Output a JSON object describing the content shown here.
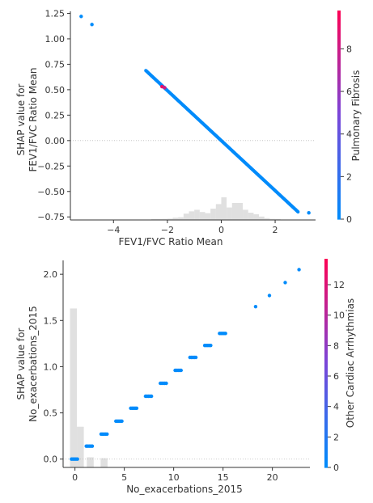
{
  "colors": {
    "low": "#008bfb",
    "mid": "#7b45d8",
    "high": "#ff0052",
    "hist": "#cccccc",
    "axis": "#333333",
    "zero_line": "#bbbbbb"
  },
  "chart_data": [
    {
      "type": "scatter",
      "title": "",
      "xlabel": "FEV1/FVC Ratio Mean",
      "ylabel_lines": [
        "SHAP value for",
        "FEV1/FVC Ratio Mean"
      ],
      "xlim": [
        -5.6,
        3.5
      ],
      "ylim": [
        -0.78,
        1.27
      ],
      "x_ticks": [
        -4,
        -2,
        0,
        2
      ],
      "y_ticks": [
        -0.75,
        -0.5,
        -0.25,
        0.0,
        0.25,
        0.5,
        0.75,
        1.0,
        1.25
      ],
      "y_tick_labels": [
        "−0.75",
        "−0.50",
        "−0.25",
        "0.00",
        "0.25",
        "0.50",
        "0.75",
        "1.00",
        "1.25"
      ],
      "x_tick_labels": [
        "−4",
        "−2",
        "0",
        "2"
      ],
      "colorbar": {
        "label": "Pulmonary Fibrosis",
        "range": [
          0,
          9.8
        ],
        "ticks": [
          0,
          2,
          4,
          6,
          8
        ]
      },
      "line_segment": {
        "x_start": -2.8,
        "x_end": 2.85,
        "slope": -0.2458,
        "intercept": 0.0
      },
      "points": [
        {
          "x": -5.2,
          "y": 1.22,
          "c": 0
        },
        {
          "x": -4.8,
          "y": 1.14,
          "c": 0
        },
        {
          "x": -2.2,
          "y": 0.53,
          "c": 9
        },
        {
          "x": -2.1,
          "y": 0.52,
          "c": 8
        },
        {
          "x": 3.25,
          "y": -0.71,
          "c": 0
        }
      ],
      "histogram": [
        0.04,
        0.04,
        0.05,
        0.06,
        0.1,
        0.12,
        0.28,
        0.38,
        0.45,
        0.35,
        0.3,
        0.5,
        0.7,
        1.0,
        0.55,
        0.75,
        0.75,
        0.45,
        0.32,
        0.25,
        0.15,
        0.08,
        0.05,
        0.04
      ],
      "histogram_xrange": [
        -2.6,
        2.2
      ]
    },
    {
      "type": "scatter",
      "title": "",
      "xlabel": "No_exacerbations_2015",
      "ylabel_lines": [
        "SHAP value for",
        "No_exacerbations_2015"
      ],
      "xlim": [
        -1.2,
        23.8
      ],
      "ylim": [
        -0.09,
        2.15
      ],
      "x_ticks": [
        0,
        5,
        10,
        15,
        20
      ],
      "x_tick_labels": [
        "0",
        "5",
        "10",
        "15",
        "20"
      ],
      "y_ticks": [
        0.0,
        0.5,
        1.0,
        1.5,
        2.0
      ],
      "y_tick_labels": [
        "0.0",
        "0.5",
        "1.0",
        "1.5",
        "2.0"
      ],
      "colorbar": {
        "label": "Other Cardiac Arrhythmias",
        "range": [
          0,
          13.7
        ],
        "ticks": [
          0,
          2,
          4,
          6,
          8,
          10,
          12
        ]
      },
      "clusters": [
        {
          "x": 0.0,
          "y": 0.0
        },
        {
          "x": 1.5,
          "y": 0.14
        },
        {
          "x": 3.0,
          "y": 0.27
        },
        {
          "x": 4.5,
          "y": 0.41
        },
        {
          "x": 6.0,
          "y": 0.55
        },
        {
          "x": 7.5,
          "y": 0.68
        },
        {
          "x": 9.0,
          "y": 0.82
        },
        {
          "x": 10.5,
          "y": 0.96
        },
        {
          "x": 12.0,
          "y": 1.1
        },
        {
          "x": 13.5,
          "y": 1.23
        },
        {
          "x": 15.0,
          "y": 1.36
        },
        {
          "x": 18.3,
          "y": 1.65
        },
        {
          "x": 19.7,
          "y": 1.77
        },
        {
          "x": 21.3,
          "y": 1.91
        },
        {
          "x": 22.7,
          "y": 2.05
        }
      ],
      "histogram": [
        {
          "x0": -0.5,
          "x1": 0.2,
          "h": 1.63
        },
        {
          "x0": 0.2,
          "x1": 0.9,
          "h": 0.35
        },
        {
          "x0": 1.2,
          "x1": 1.9,
          "h": 0.02
        },
        {
          "x0": 2.6,
          "x1": 3.3,
          "h": 0.01
        }
      ]
    }
  ]
}
